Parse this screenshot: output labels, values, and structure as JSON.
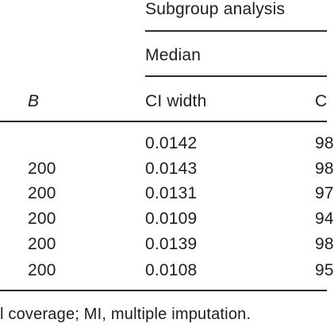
{
  "table": {
    "spanner": "Subgroup analysis",
    "subheader": "Median",
    "columns": {
      "b": "B",
      "ci_width": "CI width",
      "coverage_partial": "C"
    },
    "rows": [
      {
        "b": "",
        "ci_width": "0.0142",
        "coverage_partial": "98"
      },
      {
        "b": "200",
        "ci_width": "0.0143",
        "coverage_partial": "98"
      },
      {
        "b": "200",
        "ci_width": "0.0131",
        "coverage_partial": "97"
      },
      {
        "b": "200",
        "ci_width": "0.0109",
        "coverage_partial": "94"
      },
      {
        "b": "200",
        "ci_width": "0.0139",
        "coverage_partial": "98"
      },
      {
        "b": "200",
        "ci_width": "0.0108",
        "coverage_partial": "95"
      }
    ]
  },
  "footnote": "l coverage; MI, multiple imputation."
}
